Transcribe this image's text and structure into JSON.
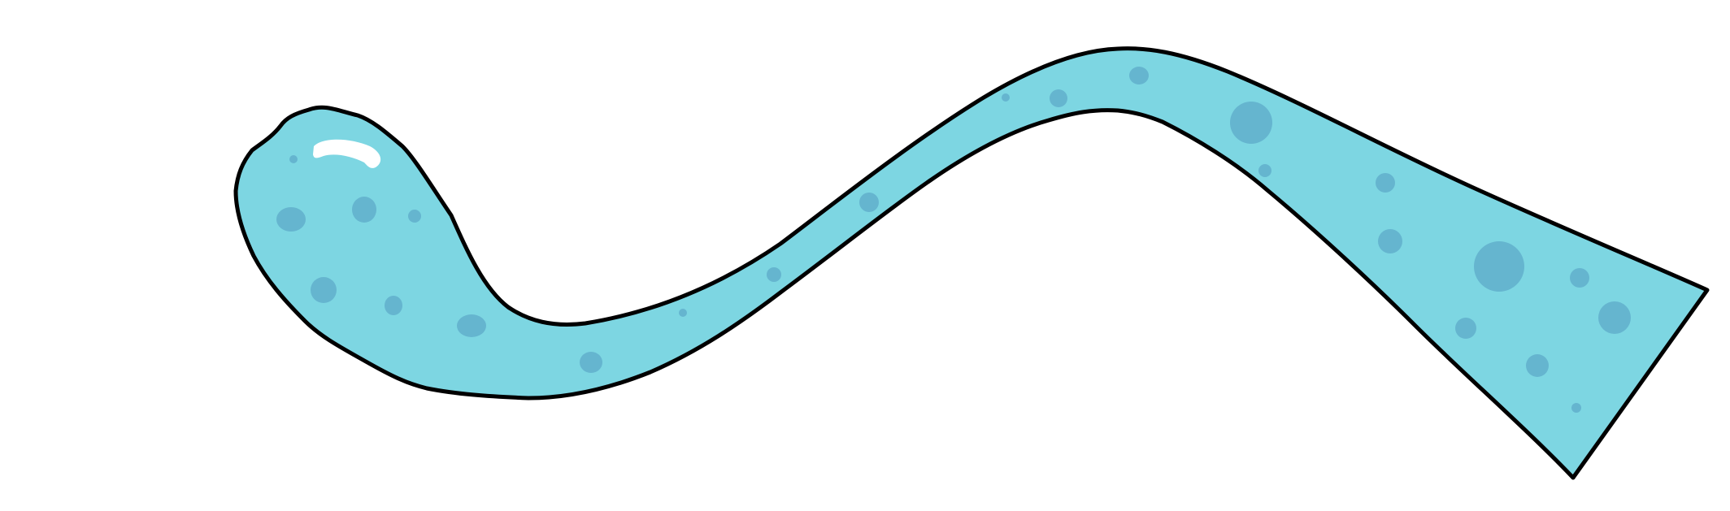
{
  "illustration": {
    "subject": "cartoon-tentacle",
    "colors": {
      "background": "#ffffff",
      "fill": "#7dd6e2",
      "outline": "#000000",
      "spots": "#65b5cf",
      "highlight": "#ffffff"
    }
  }
}
